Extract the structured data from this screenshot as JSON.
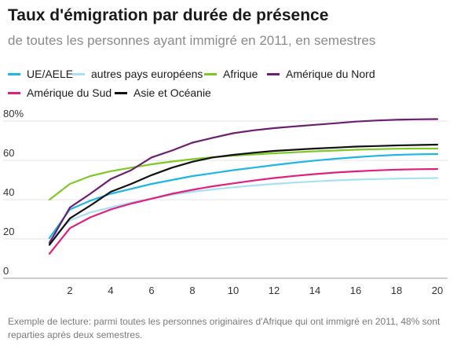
{
  "chart_data": {
    "type": "line",
    "title": "Taux d'émigration par durée de présence",
    "subtitle": "de toutes les personnes ayant immigré en 2011, en semestres",
    "x": [
      1,
      2,
      3,
      4,
      5,
      6,
      7,
      8,
      9,
      10,
      11,
      12,
      13,
      14,
      15,
      16,
      17,
      18,
      19,
      20
    ],
    "xticks": [
      2,
      4,
      6,
      8,
      10,
      12,
      14,
      16,
      18,
      20
    ],
    "xlim": [
      0.5,
      20.5
    ],
    "ylim": [
      0,
      80
    ],
    "yticks": [
      {
        "value": 0,
        "label": "0"
      },
      {
        "value": 20,
        "label": "20"
      },
      {
        "value": 40,
        "label": "40"
      },
      {
        "value": 60,
        "label": "60"
      },
      {
        "value": 80,
        "label": "80%"
      }
    ],
    "grid": true,
    "legend_position": "top",
    "series": [
      {
        "name": "UE/AELE",
        "color": "#1fb6e6",
        "values": [
          20.5,
          35,
          39.5,
          43,
          45.5,
          48,
          50,
          52,
          53.5,
          55,
          56.3,
          57.6,
          58.8,
          59.9,
          60.8,
          61.6,
          62.3,
          62.8,
          63.1,
          63.2
        ]
      },
      {
        "name": "autres pays européens",
        "color": "#a8e0f5",
        "values": [
          19,
          29.5,
          33.5,
          36,
          38.5,
          40.5,
          42.5,
          44,
          45.2,
          46.3,
          47.2,
          48,
          48.7,
          49.3,
          49.8,
          50.2,
          50.5,
          50.7,
          50.9,
          51
        ]
      },
      {
        "name": "Afrique",
        "color": "#7ec926",
        "values": [
          40,
          48,
          52,
          54.5,
          56.3,
          58,
          59.4,
          60.6,
          61.6,
          62.4,
          63,
          63.6,
          64.1,
          64.6,
          65,
          65.4,
          65.7,
          65.9,
          66,
          66
        ]
      },
      {
        "name": "Amérique du Nord",
        "color": "#6b1f6e",
        "values": [
          18,
          36,
          43,
          50.5,
          55,
          61.5,
          65,
          69,
          71.5,
          73.8,
          75.3,
          76.4,
          77.3,
          78.1,
          78.9,
          79.7,
          80.3,
          80.7,
          80.9,
          81
        ]
      },
      {
        "name": "Amérique du Sud",
        "color": "#e0207f",
        "values": [
          12.5,
          25.5,
          31,
          35,
          38,
          40.5,
          43,
          45,
          46.8,
          48.3,
          49.7,
          51,
          52.1,
          53,
          53.8,
          54.4,
          54.9,
          55.3,
          55.5,
          55.6
        ]
      },
      {
        "name": "Asie et Océanie",
        "color": "#111111",
        "values": [
          17,
          30.5,
          37,
          44,
          48,
          52.5,
          56.3,
          59.3,
          61.5,
          62.8,
          63.9,
          64.8,
          65.4,
          66,
          66.5,
          67,
          67.3,
          67.6,
          67.8,
          68
        ]
      }
    ]
  },
  "note": "Exemple de lecture: parmi toutes les personnes originaires d'Afrique qui ont immigré en 2011, 48% sont reparties après deux semestres."
}
